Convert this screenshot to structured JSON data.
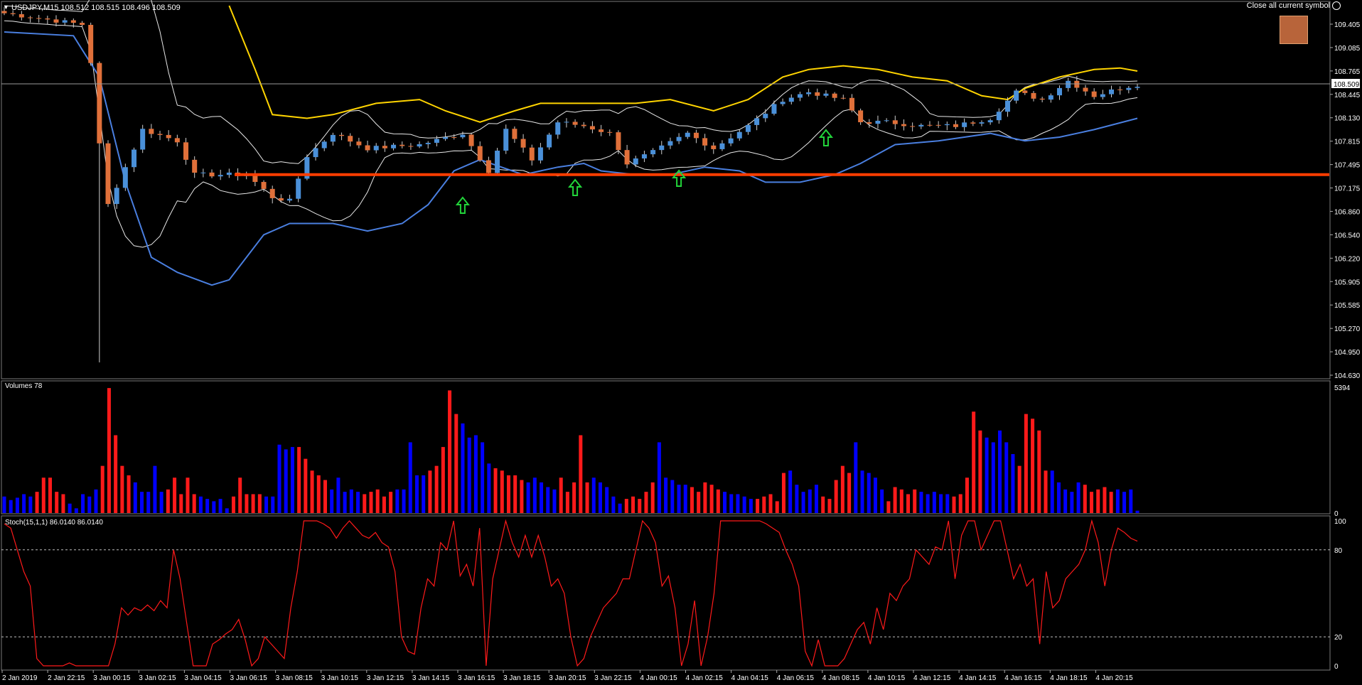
{
  "header": {
    "symbol_info": "USDJPY,M15  108.512 108.515 108.496 108.509"
  },
  "close_button": {
    "label": "Close all current symbol"
  },
  "colors": {
    "bull": "#4a90d9",
    "bear": "#e0703a",
    "volume_up": "#0000ff",
    "volume_down": "#ff1a1a",
    "stoch": "#ff1a1a",
    "upper_envelope": "#ffd400",
    "lower_envelope": "#4a7fe0",
    "bollinger": "#e8e8e8",
    "support": "#ff3d00",
    "arrow": "#22d43a",
    "swatch": "#b8643a"
  },
  "price_axis": {
    "ticks": [
      "109.405",
      "109.085",
      "108.765",
      "108.445",
      "108.130",
      "107.815",
      "107.495",
      "107.175",
      "106.860",
      "106.540",
      "106.220",
      "105.905",
      "105.585",
      "105.270",
      "104.950",
      "104.630"
    ],
    "current": "108.509"
  },
  "time_axis": [
    "2 Jan 2019",
    "2 Jan 22:15",
    "3 Jan 00:15",
    "3 Jan 02:15",
    "3 Jan 04:15",
    "3 Jan 06:15",
    "3 Jan 08:15",
    "3 Jan 10:15",
    "3 Jan 12:15",
    "3 Jan 14:15",
    "3 Jan 16:15",
    "3 Jan 18:15",
    "3 Jan 20:15",
    "3 Jan 22:15",
    "4 Jan 00:15",
    "4 Jan 02:15",
    "4 Jan 04:15",
    "4 Jan 06:15",
    "4 Jan 08:15",
    "4 Jan 10:15",
    "4 Jan 12:15",
    "4 Jan 14:15",
    "4 Jan 16:15",
    "4 Jan 18:15",
    "4 Jan 20:15"
  ],
  "volume_panel": {
    "label": "Volumes 78",
    "ticks": [
      "5394",
      "0"
    ]
  },
  "stoch_panel": {
    "label": "Stoch(15,1,1) 86.0140 86.0140",
    "ticks": [
      "100",
      "80",
      "20",
      "0"
    ]
  },
  "chart_data": [
    {
      "type": "candlestick",
      "title": "USDJPY,M15",
      "ylim": [
        104.63,
        109.55
      ],
      "support_level": 107.3,
      "signal_arrows_near": [
        "3 Jan 16:15",
        "3 Jan 22:15",
        "4 Jan 02:15",
        "4 Jan 08:15"
      ],
      "close_path": [
        [
          0,
          109.45
        ],
        [
          9,
          109.3
        ],
        [
          10,
          108.8
        ],
        [
          11,
          107.7
        ],
        [
          12,
          106.9
        ],
        [
          16,
          107.9
        ],
        [
          20,
          107.75
        ],
        [
          22,
          107.3
        ],
        [
          28,
          107.3
        ],
        [
          31,
          107.0
        ],
        [
          33,
          106.95
        ],
        [
          35,
          107.55
        ],
        [
          38,
          107.85
        ],
        [
          42,
          107.65
        ],
        [
          48,
          107.7
        ],
        [
          53,
          107.85
        ],
        [
          56,
          107.35
        ],
        [
          58,
          107.9
        ],
        [
          61,
          107.5
        ],
        [
          64,
          108.0
        ],
        [
          67,
          107.95
        ],
        [
          70,
          107.85
        ],
        [
          72,
          107.45
        ],
        [
          75,
          107.6
        ],
        [
          79,
          107.85
        ],
        [
          82,
          107.65
        ],
        [
          86,
          107.95
        ],
        [
          90,
          108.3
        ],
        [
          93,
          108.4
        ],
        [
          97,
          108.3
        ],
        [
          99,
          108.0
        ],
        [
          102,
          108.0
        ],
        [
          106,
          107.95
        ],
        [
          110,
          107.95
        ],
        [
          114,
          108.05
        ],
        [
          117,
          108.4
        ],
        [
          120,
          108.3
        ],
        [
          123,
          108.55
        ],
        [
          126,
          108.35
        ],
        [
          129,
          108.45
        ],
        [
          131,
          108.5
        ]
      ],
      "series": [
        {
          "name": "",
          "values": [
            [
              0,
              109.2
            ],
            [
              8,
              109.15
            ],
            [
              11,
              108.6
            ],
            [
              14,
              107.2
            ],
            [
              17,
              106.2
            ],
            [
              20,
              106.0
            ],
            [
              24,
              105.83
            ],
            [
              26,
              105.9
            ],
            [
              30,
              106.5
            ],
            [
              33,
              106.65
            ],
            [
              38,
              106.65
            ],
            [
              42,
              106.55
            ],
            [
              46,
              106.65
            ],
            [
              49,
              106.9
            ],
            [
              52,
              107.35
            ],
            [
              55,
              107.5
            ],
            [
              60,
              107.3
            ],
            [
              64,
              107.4
            ],
            [
              67,
              107.45
            ],
            [
              69,
              107.35
            ],
            [
              73,
              107.3
            ],
            [
              77,
              107.3
            ],
            [
              81,
              107.4
            ],
            [
              85,
              107.35
            ],
            [
              88,
              107.2
            ],
            [
              92,
              107.2
            ],
            [
              96,
              107.3
            ],
            [
              99,
              107.45
            ],
            [
              103,
              107.7
            ],
            [
              108,
              107.75
            ],
            [
              111,
              107.8
            ],
            [
              114,
              107.85
            ],
            [
              118,
              107.75
            ],
            [
              122,
              107.8
            ],
            [
              126,
              107.9
            ],
            [
              131,
              108.05
            ]
          ]
        },
        {
          "name": "",
          "values": [
            [
              26,
              109.55
            ],
            [
              29,
              108.7
            ],
            [
              31,
              108.1
            ],
            [
              35,
              108.05
            ],
            [
              38,
              108.1
            ],
            [
              43,
              108.25
            ],
            [
              48,
              108.3
            ],
            [
              51,
              108.15
            ],
            [
              55,
              108.0
            ],
            [
              59,
              108.15
            ],
            [
              62,
              108.25
            ],
            [
              68,
              108.25
            ],
            [
              73,
              108.25
            ],
            [
              77,
              108.3
            ],
            [
              82,
              108.15
            ],
            [
              86,
              108.3
            ],
            [
              90,
              108.6
            ],
            [
              93,
              108.7
            ],
            [
              97,
              108.75
            ],
            [
              101,
              108.7
            ],
            [
              105,
              108.6
            ],
            [
              109,
              108.55
            ],
            [
              113,
              108.35
            ],
            [
              116,
              108.3
            ],
            [
              118,
              108.45
            ],
            [
              122,
              108.6
            ],
            [
              126,
              108.7
            ],
            [
              129,
              108.72
            ],
            [
              131,
              108.68
            ]
          ]
        }
      ]
    },
    {
      "type": "bar",
      "title": "Volumes 78",
      "ylim": [
        0,
        5394
      ],
      "values": [
        700,
        550,
        650,
        800,
        700,
        900,
        1500,
        1500,
        900,
        800,
        400,
        200,
        800,
        700,
        1000,
        2000,
        5300,
        3300,
        2000,
        1600,
        1300,
        900,
        900,
        2000,
        900,
        1000,
        1500,
        800,
        1500,
        800,
        700,
        600,
        500,
        600,
        200,
        700,
        1500,
        800,
        800,
        800,
        700,
        700,
        2900,
        2700,
        2800,
        2800,
        2300,
        1800,
        1600,
        1400,
        1000,
        1500,
        900,
        1000,
        900,
        800,
        900,
        1000,
        700,
        900,
        1000,
        1000,
        3000,
        1600,
        1600,
        1800,
        2000,
        2800,
        5200,
        4200,
        3800,
        3200,
        3300,
        3000,
        2100,
        1900,
        1800,
        1600,
        1600,
        1400,
        1300,
        1500,
        1300,
        1100,
        1000,
        1500,
        900,
        1300,
        3300,
        1300,
        1500,
        1300,
        1100,
        700,
        400,
        600,
        700,
        600,
        900,
        1300,
        3000,
        1500,
        1400,
        1200,
        1200,
        1100,
        900,
        1300,
        1200,
        1000,
        900,
        800,
        800,
        700,
        600,
        600,
        700,
        800,
        500,
        1700,
        1800,
        1200,
        900,
        1000,
        1200,
        700,
        600,
        1400,
        2000,
        1700,
        3000,
        1800,
        1700,
        1500,
        1000,
        500,
        1100,
        1000,
        800,
        1000,
        900,
        800,
        900,
        800,
        800,
        700,
        800,
        1500,
        4300,
        3500,
        3200,
        3000,
        3500,
        3000,
        2500,
        2000,
        4200,
        4000,
        3500,
        1800,
        1800,
        1300,
        1000,
        900,
        1300,
        1200,
        900,
        1000,
        1100,
        900,
        1000,
        900,
        1000,
        100
      ]
    },
    {
      "type": "line",
      "title": "Stoch(15,1,1) 86.0140 86.0140",
      "ylim": [
        0,
        100
      ],
      "values": [
        98,
        95,
        80,
        65,
        55,
        5,
        0,
        0,
        0,
        0,
        2,
        0,
        0,
        0,
        0,
        0,
        0,
        15,
        40,
        35,
        40,
        38,
        42,
        38,
        45,
        40,
        80,
        60,
        30,
        0,
        0,
        0,
        15,
        18,
        22,
        25,
        32,
        18,
        0,
        5,
        20,
        15,
        10,
        5,
        40,
        65,
        100,
        100,
        100,
        98,
        95,
        88,
        95,
        100,
        95,
        90,
        88,
        92,
        85,
        82,
        65,
        20,
        10,
        8,
        40,
        60,
        55,
        85,
        80,
        100,
        62,
        70,
        55,
        95,
        0,
        60,
        80,
        100,
        85,
        75,
        90,
        75,
        90,
        75,
        55,
        60,
        50,
        20,
        0,
        5,
        20,
        30,
        40,
        45,
        50,
        60,
        60,
        80,
        100,
        95,
        85,
        55,
        62,
        40,
        0,
        15,
        45,
        0,
        20,
        50,
        100,
        100,
        100,
        100,
        100,
        100,
        100,
        98,
        95,
        92,
        80,
        70,
        55,
        10,
        0,
        18,
        0,
        0,
        0,
        5,
        15,
        25,
        30,
        15,
        40,
        25,
        50,
        45,
        55,
        60,
        80,
        75,
        70,
        82,
        80,
        100,
        60,
        90,
        100,
        100,
        80,
        90,
        100,
        100,
        80,
        60,
        70,
        55,
        60,
        15,
        65,
        40,
        45,
        60,
        65,
        70,
        80,
        100,
        85,
        55,
        80,
        95,
        92,
        88,
        86
      ]
    }
  ]
}
